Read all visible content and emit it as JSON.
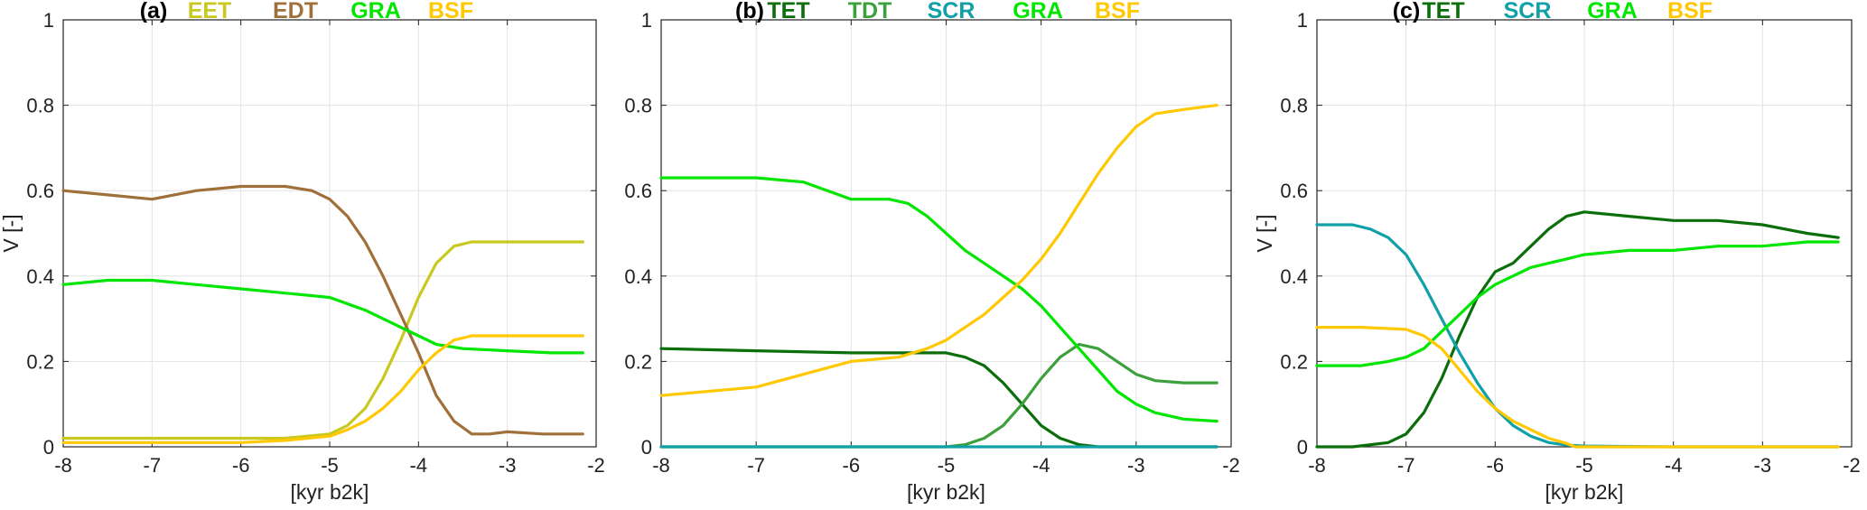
{
  "chart_data": [
    {
      "type": "line",
      "panel_label": "(a)",
      "xlabel": "[kyr b2k]",
      "ylabel": "V [-]",
      "xlim": [
        -8,
        -2
      ],
      "ylim": [
        0,
        1
      ],
      "xticks": [
        -8,
        -7,
        -6,
        -5,
        -4,
        -3,
        -2
      ],
      "yticks": [
        0,
        0.2,
        0.4,
        0.6,
        0.8,
        1
      ],
      "xtick_labels": [
        "-8",
        "-7",
        "-6",
        "-5",
        "-4",
        "-3",
        "-2"
      ],
      "ytick_labels": [
        "0",
        "0.2",
        "0.4",
        "0.6",
        "0.8",
        "1"
      ],
      "grid": true,
      "legend_position": "top",
      "series": [
        {
          "name": "EET",
          "color": "#c8c820",
          "x": [
            -8,
            -7,
            -6,
            -5.5,
            -5,
            -4.8,
            -4.6,
            -4.4,
            -4.2,
            -4.0,
            -3.8,
            -3.6,
            -3.4,
            -3.0,
            -2.5,
            -2.15
          ],
          "values": [
            0.02,
            0.02,
            0.02,
            0.02,
            0.03,
            0.05,
            0.09,
            0.16,
            0.25,
            0.35,
            0.43,
            0.47,
            0.48,
            0.48,
            0.48,
            0.48
          ]
        },
        {
          "name": "EDT",
          "color": "#a0703a",
          "x": [
            -8,
            -7.5,
            -7,
            -6.5,
            -6,
            -5.5,
            -5.2,
            -5.0,
            -4.8,
            -4.6,
            -4.4,
            -4.2,
            -4.0,
            -3.8,
            -3.6,
            -3.4,
            -3.2,
            -3.0,
            -2.6,
            -2.15
          ],
          "values": [
            0.6,
            0.59,
            0.58,
            0.6,
            0.61,
            0.61,
            0.6,
            0.58,
            0.54,
            0.48,
            0.4,
            0.31,
            0.22,
            0.12,
            0.06,
            0.03,
            0.03,
            0.035,
            0.03,
            0.03
          ]
        },
        {
          "name": "GRA",
          "color": "#00e600",
          "x": [
            -8,
            -7.5,
            -7,
            -6.5,
            -6,
            -5.5,
            -5.0,
            -4.6,
            -4.2,
            -4.0,
            -3.8,
            -3.5,
            -3.0,
            -2.5,
            -2.15
          ],
          "values": [
            0.38,
            0.39,
            0.39,
            0.38,
            0.37,
            0.36,
            0.35,
            0.32,
            0.28,
            0.26,
            0.24,
            0.23,
            0.225,
            0.22,
            0.22
          ]
        },
        {
          "name": "BSF",
          "color": "#ffc800",
          "x": [
            -8,
            -7,
            -6,
            -5.5,
            -5.0,
            -4.8,
            -4.6,
            -4.4,
            -4.2,
            -4.0,
            -3.8,
            -3.6,
            -3.4,
            -3.0,
            -2.5,
            -2.15
          ],
          "values": [
            0.01,
            0.01,
            0.01,
            0.015,
            0.025,
            0.04,
            0.06,
            0.09,
            0.13,
            0.18,
            0.22,
            0.25,
            0.26,
            0.26,
            0.26,
            0.26
          ]
        }
      ]
    },
    {
      "type": "line",
      "panel_label": "(b)",
      "xlabel": "[kyr b2k]",
      "ylabel": "",
      "xlim": [
        -8,
        -2
      ],
      "ylim": [
        0,
        1
      ],
      "xticks": [
        -8,
        -7,
        -6,
        -5,
        -4,
        -3,
        -2
      ],
      "yticks": [
        0,
        0.2,
        0.4,
        0.6,
        0.8,
        1
      ],
      "xtick_labels": [
        "-8",
        "-7",
        "-6",
        "-5",
        "-4",
        "-3",
        "-2"
      ],
      "ytick_labels": [
        "0",
        "0.2",
        "0.4",
        "0.6",
        "0.8",
        "1"
      ],
      "grid": true,
      "legend_position": "top",
      "series": [
        {
          "name": "TET",
          "color": "#0a6e0a",
          "x": [
            -8,
            -7,
            -6,
            -5.5,
            -5.0,
            -4.8,
            -4.6,
            -4.4,
            -4.2,
            -4.0,
            -3.8,
            -3.6,
            -3.4,
            -3.0,
            -2.15
          ],
          "values": [
            0.23,
            0.225,
            0.22,
            0.22,
            0.22,
            0.21,
            0.19,
            0.15,
            0.1,
            0.05,
            0.02,
            0.005,
            0.0,
            0.0,
            0.0
          ]
        },
        {
          "name": "TDT",
          "color": "#3ca03c",
          "x": [
            -8,
            -6,
            -5.0,
            -4.8,
            -4.6,
            -4.4,
            -4.2,
            -4.0,
            -3.8,
            -3.6,
            -3.4,
            -3.2,
            -3.0,
            -2.8,
            -2.5,
            -2.15
          ],
          "values": [
            0.0,
            0.0,
            0.0,
            0.005,
            0.02,
            0.05,
            0.1,
            0.16,
            0.21,
            0.24,
            0.23,
            0.2,
            0.17,
            0.155,
            0.15,
            0.15
          ]
        },
        {
          "name": "SCR",
          "color": "#10a0a8",
          "x": [
            -8,
            -6,
            -4,
            -2.15
          ],
          "values": [
            0.0,
            0.0,
            0.0,
            0.0
          ]
        },
        {
          "name": "GRA",
          "color": "#00e600",
          "x": [
            -8,
            -7.5,
            -7,
            -6.5,
            -6,
            -5.6,
            -5.4,
            -5.2,
            -5.0,
            -4.8,
            -4.6,
            -4.4,
            -4.2,
            -4.0,
            -3.8,
            -3.6,
            -3.4,
            -3.2,
            -3.0,
            -2.8,
            -2.5,
            -2.15
          ],
          "values": [
            0.63,
            0.63,
            0.63,
            0.62,
            0.58,
            0.58,
            0.57,
            0.54,
            0.5,
            0.46,
            0.43,
            0.4,
            0.37,
            0.33,
            0.28,
            0.23,
            0.18,
            0.13,
            0.1,
            0.08,
            0.065,
            0.06
          ]
        },
        {
          "name": "BSF",
          "color": "#ffc800",
          "x": [
            -8,
            -7.5,
            -7,
            -6.5,
            -6,
            -5.5,
            -5.2,
            -5.0,
            -4.8,
            -4.6,
            -4.4,
            -4.2,
            -4.0,
            -3.8,
            -3.6,
            -3.4,
            -3.2,
            -3.0,
            -2.8,
            -2.5,
            -2.15
          ],
          "values": [
            0.12,
            0.13,
            0.14,
            0.17,
            0.2,
            0.21,
            0.23,
            0.25,
            0.28,
            0.31,
            0.35,
            0.39,
            0.44,
            0.5,
            0.57,
            0.64,
            0.7,
            0.75,
            0.78,
            0.79,
            0.8
          ]
        }
      ]
    },
    {
      "type": "line",
      "panel_label": "(c)",
      "xlabel": "[kyr b2k]",
      "ylabel": "V [-]",
      "xlim": [
        -8,
        -2
      ],
      "ylim": [
        0,
        1
      ],
      "xticks": [
        -8,
        -7,
        -6,
        -5,
        -4,
        -3,
        -2
      ],
      "yticks": [
        0,
        0.2,
        0.4,
        0.6,
        0.8,
        1
      ],
      "xtick_labels": [
        "-8",
        "-7",
        "-6",
        "-5",
        "-4",
        "-3",
        "-2"
      ],
      "ytick_labels": [
        "0",
        "0.2",
        "0.4",
        "0.6",
        "0.8",
        "1"
      ],
      "grid": true,
      "legend_position": "top",
      "series": [
        {
          "name": "TET",
          "color": "#0a6e0a",
          "x": [
            -8,
            -7.6,
            -7.2,
            -7.0,
            -6.8,
            -6.6,
            -6.4,
            -6.2,
            -6.0,
            -5.8,
            -5.6,
            -5.4,
            -5.2,
            -5.0,
            -4.5,
            -4.0,
            -3.5,
            -3.0,
            -2.5,
            -2.15
          ],
          "values": [
            0.0,
            0.0,
            0.01,
            0.03,
            0.08,
            0.16,
            0.26,
            0.35,
            0.41,
            0.43,
            0.47,
            0.51,
            0.54,
            0.55,
            0.54,
            0.53,
            0.53,
            0.52,
            0.5,
            0.49
          ]
        },
        {
          "name": "SCR",
          "color": "#10a0a8",
          "x": [
            -8,
            -7.6,
            -7.4,
            -7.2,
            -7.0,
            -6.8,
            -6.6,
            -6.4,
            -6.2,
            -6.0,
            -5.8,
            -5.6,
            -5.4,
            -5.2,
            -5.0,
            -4.0,
            -3.0,
            -2.15
          ],
          "values": [
            0.52,
            0.52,
            0.51,
            0.49,
            0.45,
            0.38,
            0.3,
            0.22,
            0.15,
            0.09,
            0.05,
            0.025,
            0.01,
            0.004,
            0.002,
            0.0,
            0.0,
            0.0
          ]
        },
        {
          "name": "GRA",
          "color": "#00e600",
          "x": [
            -8,
            -7.5,
            -7.2,
            -7.0,
            -6.8,
            -6.6,
            -6.4,
            -6.2,
            -6.0,
            -5.8,
            -5.6,
            -5.4,
            -5.2,
            -5.0,
            -4.5,
            -4.0,
            -3.5,
            -3.0,
            -2.5,
            -2.15
          ],
          "values": [
            0.19,
            0.19,
            0.2,
            0.21,
            0.23,
            0.27,
            0.31,
            0.35,
            0.38,
            0.4,
            0.42,
            0.43,
            0.44,
            0.45,
            0.46,
            0.46,
            0.47,
            0.47,
            0.48,
            0.48
          ]
        },
        {
          "name": "BSF",
          "color": "#ffc800",
          "x": [
            -8,
            -7.5,
            -7.0,
            -6.8,
            -6.6,
            -6.4,
            -6.2,
            -6.0,
            -5.8,
            -5.6,
            -5.4,
            -5.2,
            -5.1,
            -4.0,
            -2.15
          ],
          "values": [
            0.28,
            0.28,
            0.275,
            0.26,
            0.23,
            0.18,
            0.13,
            0.09,
            0.06,
            0.04,
            0.02,
            0.008,
            0.0,
            0.0,
            0.0
          ]
        }
      ]
    }
  ]
}
